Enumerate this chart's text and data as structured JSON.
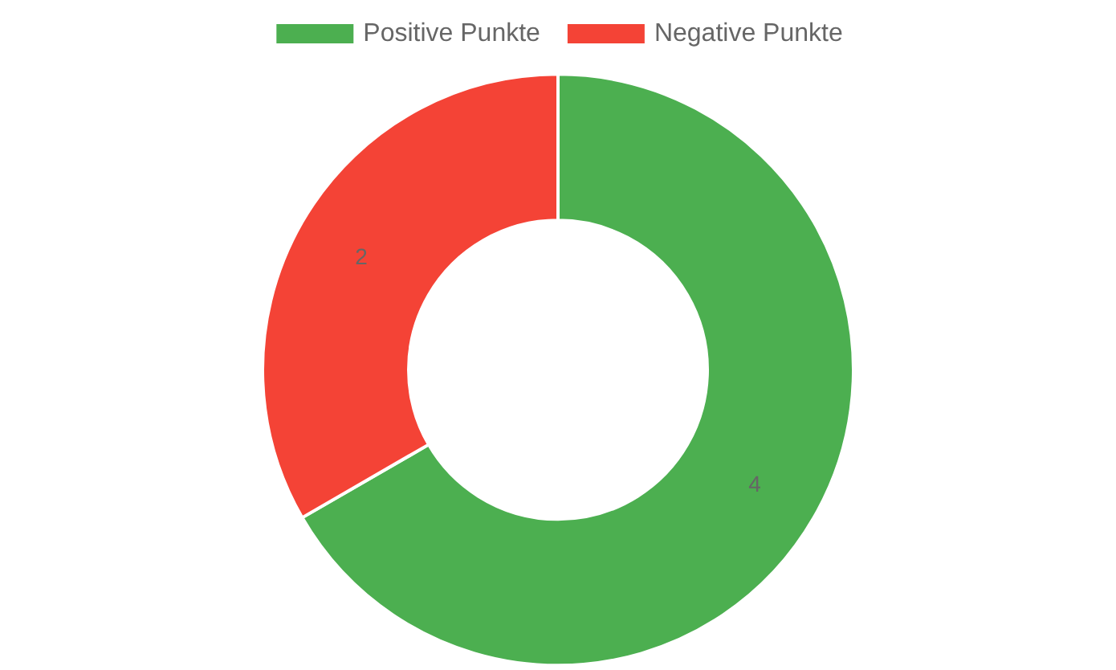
{
  "chart_data": {
    "type": "donut",
    "categories": [
      "Positive Punkte",
      "Negative Punkte"
    ],
    "values": [
      4,
      2
    ],
    "colors": [
      "#4caf50",
      "#f44336"
    ],
    "legend": "top",
    "data_labels": true
  }
}
